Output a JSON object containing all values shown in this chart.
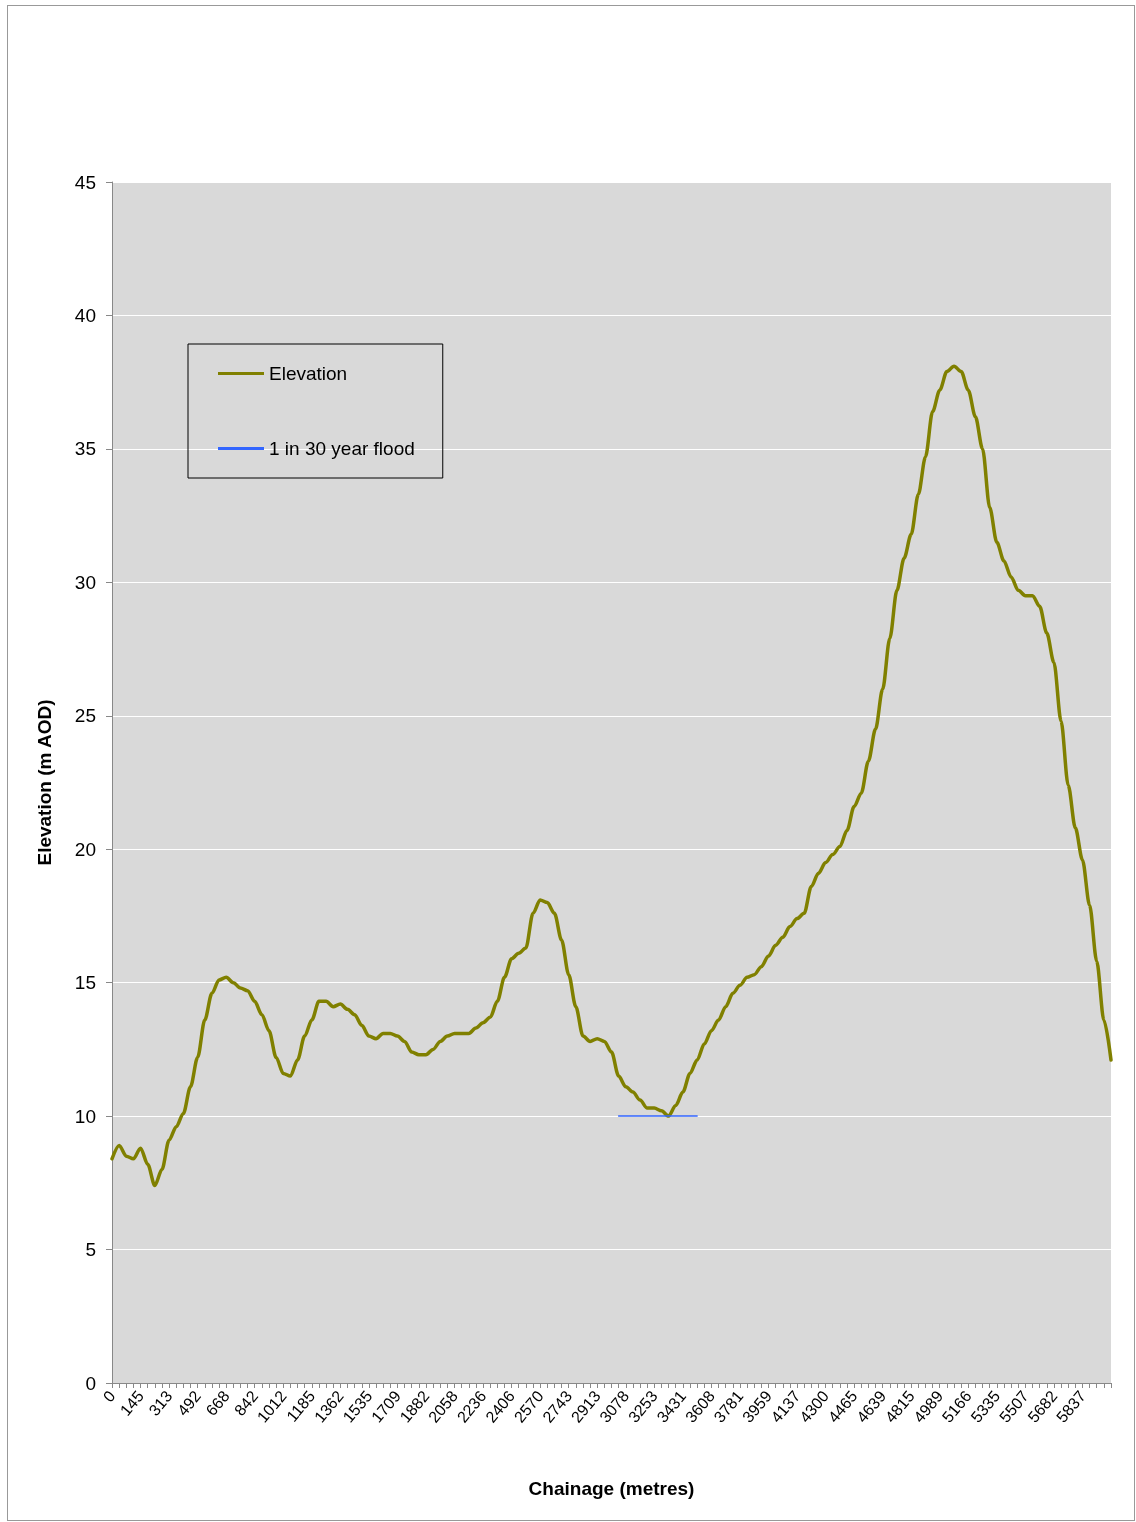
{
  "chart_data": {
    "type": "line",
    "xlabel": "Chainage (metres)",
    "ylabel": "Elevation (m AOD)",
    "categories": [
      "0",
      null,
      null,
      null,
      "145",
      null,
      null,
      null,
      "313",
      null,
      null,
      null,
      "492",
      null,
      null,
      null,
      "668",
      null,
      null,
      null,
      "842",
      null,
      null,
      null,
      "1012",
      null,
      null,
      null,
      "1185",
      null,
      null,
      null,
      "1362",
      null,
      null,
      null,
      "1535",
      null,
      null,
      null,
      "1709",
      null,
      null,
      null,
      "1882",
      null,
      null,
      null,
      "2058",
      null,
      null,
      null,
      "2236",
      null,
      null,
      null,
      "2406",
      null,
      null,
      null,
      "2570",
      null,
      null,
      null,
      "2743",
      null,
      null,
      null,
      "2913",
      null,
      null,
      null,
      "3078",
      null,
      null,
      null,
      "3253",
      null,
      null,
      null,
      "3431",
      null,
      null,
      null,
      "3608",
      null,
      null,
      null,
      "3781",
      null,
      null,
      null,
      "3959",
      null,
      null,
      null,
      "4137",
      null,
      null,
      null,
      "4300",
      null,
      null,
      null,
      "4465",
      null,
      null,
      null,
      "4639",
      null,
      null,
      null,
      "4815",
      null,
      null,
      null,
      "4989",
      null,
      null,
      null,
      "5166",
      null,
      null,
      null,
      "5335",
      null,
      null,
      null,
      "5507",
      null,
      null,
      null,
      "5682",
      null,
      null,
      null,
      "5837",
      null,
      null,
      null,
      null
    ],
    "series": [
      {
        "name": "Elevation",
        "color": "#808000",
        "values": [
          8.4,
          8.9,
          8.5,
          8.4,
          8.8,
          8.2,
          7.4,
          8.0,
          9.1,
          9.6,
          10.1,
          11.1,
          12.2,
          13.6,
          14.6,
          15.1,
          15.2,
          15.0,
          14.8,
          14.7,
          14.3,
          13.8,
          13.2,
          12.2,
          11.6,
          11.5,
          12.1,
          13.0,
          13.6,
          14.3,
          14.3,
          14.1,
          14.2,
          14.0,
          13.8,
          13.4,
          13.0,
          12.9,
          13.1,
          13.1,
          13.0,
          12.8,
          12.4,
          12.3,
          12.3,
          12.5,
          12.8,
          13.0,
          13.1,
          13.1,
          13.1,
          13.3,
          13.5,
          13.7,
          14.3,
          15.2,
          15.9,
          16.1,
          16.3,
          17.6,
          18.1,
          18.0,
          17.6,
          16.6,
          15.3,
          14.1,
          13.0,
          12.8,
          12.9,
          12.8,
          12.4,
          11.5,
          11.1,
          10.9,
          10.6,
          10.3,
          10.3,
          10.2,
          10.0,
          10.4,
          10.9,
          11.6,
          12.1,
          12.7,
          13.2,
          13.6,
          14.1,
          14.6,
          14.9,
          15.2,
          15.3,
          15.6,
          16.0,
          16.4,
          16.7,
          17.1,
          17.4,
          17.6,
          18.6,
          19.1,
          19.5,
          19.8,
          20.1,
          20.7,
          21.6,
          22.1,
          23.3,
          24.5,
          26.0,
          27.9,
          29.7,
          30.9,
          31.8,
          33.3,
          34.7,
          36.4,
          37.2,
          37.9,
          38.1,
          37.9,
          37.2,
          36.2,
          35.0,
          32.8,
          31.5,
          30.8,
          30.2,
          29.7,
          29.5,
          29.5,
          29.1,
          28.1,
          27.0,
          24.8,
          22.4,
          20.8,
          19.6,
          17.9,
          15.8,
          13.6,
          12.1
        ]
      },
      {
        "name": "1 in 30 year flood",
        "color": "#3366ff",
        "values": [
          null,
          null,
          null,
          null,
          null,
          null,
          null,
          null,
          null,
          null,
          null,
          null,
          null,
          null,
          null,
          null,
          null,
          null,
          null,
          null,
          null,
          null,
          null,
          null,
          null,
          null,
          null,
          null,
          null,
          null,
          null,
          null,
          null,
          null,
          null,
          null,
          null,
          null,
          null,
          null,
          null,
          null,
          null,
          null,
          null,
          null,
          null,
          null,
          null,
          null,
          null,
          null,
          null,
          null,
          null,
          null,
          null,
          null,
          null,
          null,
          null,
          null,
          null,
          null,
          null,
          null,
          null,
          null,
          null,
          null,
          null,
          10,
          10,
          10,
          10,
          10,
          10,
          10,
          10,
          10,
          10,
          10,
          10,
          null,
          null,
          null,
          null,
          null,
          null,
          null,
          null,
          null,
          null,
          null,
          null,
          null,
          null,
          null,
          null,
          null,
          null,
          null,
          null,
          null,
          null,
          null,
          null,
          null,
          null,
          null,
          null,
          null,
          null,
          null,
          null,
          null,
          null,
          null,
          null,
          null,
          null,
          null,
          null,
          null,
          null,
          null,
          null,
          null,
          null,
          null,
          null,
          null,
          null,
          null,
          null,
          null,
          null,
          null,
          null,
          null,
          null
        ]
      }
    ],
    "ylim": [
      0,
      45
    ],
    "yticks": [
      0,
      5,
      10,
      15,
      20,
      25,
      30,
      35,
      40,
      45
    ],
    "grid": "y",
    "legend": "top left",
    "marker": "none",
    "line_style": "solid"
  }
}
